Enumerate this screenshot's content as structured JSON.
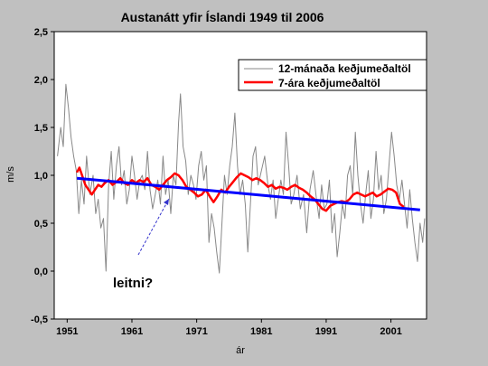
{
  "chart_data": {
    "type": "line",
    "title": "Austanátt yfir Íslandi 1949 til 2006",
    "xlabel": "ár",
    "ylabel": "m/s",
    "xlim": [
      1949,
      2006.5
    ],
    "ylim": [
      -0.5,
      2.5
    ],
    "x_ticks": [
      1951,
      1961,
      1971,
      1981,
      1991,
      2001
    ],
    "y_ticks": [
      -0.5,
      0.0,
      0.5,
      1.0,
      1.5,
      2.0,
      2.5
    ],
    "y_tick_labels": [
      "-0,5",
      "0,0",
      "0,5",
      "1,0",
      "1,5",
      "2,0",
      "2,5"
    ],
    "grid": false,
    "legend_position": "top-right",
    "series": [
      {
        "name": "12-mánaða keðjumeðaltöl",
        "color": "#888888",
        "points": [
          [
            1949.5,
            1.2
          ],
          [
            1950.0,
            1.5
          ],
          [
            1950.4,
            1.3
          ],
          [
            1950.8,
            1.95
          ],
          [
            1951.2,
            1.7
          ],
          [
            1951.6,
            1.4
          ],
          [
            1952.0,
            1.2
          ],
          [
            1952.4,
            1.05
          ],
          [
            1952.8,
            0.6
          ],
          [
            1953.2,
            0.95
          ],
          [
            1953.6,
            0.7
          ],
          [
            1954.0,
            1.2
          ],
          [
            1954.5,
            0.8
          ],
          [
            1955.0,
            1.0
          ],
          [
            1955.4,
            0.6
          ],
          [
            1955.8,
            0.75
          ],
          [
            1956.2,
            0.45
          ],
          [
            1956.6,
            0.55
          ],
          [
            1957.0,
            0.0
          ],
          [
            1957.4,
            0.9
          ],
          [
            1957.8,
            1.25
          ],
          [
            1958.2,
            0.75
          ],
          [
            1958.6,
            1.1
          ],
          [
            1959.0,
            1.3
          ],
          [
            1959.4,
            0.9
          ],
          [
            1959.8,
            1.05
          ],
          [
            1960.2,
            0.7
          ],
          [
            1960.6,
            0.85
          ],
          [
            1961.0,
            1.2
          ],
          [
            1961.4,
            1.0
          ],
          [
            1961.8,
            0.75
          ],
          [
            1962.2,
            0.95
          ],
          [
            1962.6,
            1.0
          ],
          [
            1963.0,
            0.85
          ],
          [
            1963.4,
            1.25
          ],
          [
            1963.8,
            0.85
          ],
          [
            1964.2,
            0.65
          ],
          [
            1964.6,
            0.8
          ],
          [
            1965.0,
            0.95
          ],
          [
            1965.4,
            0.7
          ],
          [
            1965.8,
            1.2
          ],
          [
            1966.2,
            0.8
          ],
          [
            1966.6,
            0.95
          ],
          [
            1967.0,
            0.6
          ],
          [
            1967.4,
            1.0
          ],
          [
            1967.8,
            0.9
          ],
          [
            1968.2,
            1.55
          ],
          [
            1968.5,
            1.85
          ],
          [
            1968.9,
            1.3
          ],
          [
            1969.3,
            1.15
          ],
          [
            1969.7,
            0.8
          ],
          [
            1970.1,
            1.0
          ],
          [
            1970.5,
            0.9
          ],
          [
            1970.9,
            0.75
          ],
          [
            1971.3,
            1.1
          ],
          [
            1971.7,
            1.25
          ],
          [
            1972.1,
            0.95
          ],
          [
            1972.5,
            1.1
          ],
          [
            1972.9,
            0.3
          ],
          [
            1973.3,
            0.6
          ],
          [
            1973.7,
            0.45
          ],
          [
            1974.1,
            0.2
          ],
          [
            1974.5,
            -0.02
          ],
          [
            1974.9,
            0.5
          ],
          [
            1975.3,
            1.0
          ],
          [
            1975.7,
            0.8
          ],
          [
            1976.1,
            1.1
          ],
          [
            1976.5,
            1.3
          ],
          [
            1976.9,
            1.65
          ],
          [
            1977.3,
            1.1
          ],
          [
            1977.7,
            0.8
          ],
          [
            1978.1,
            0.95
          ],
          [
            1978.5,
            0.7
          ],
          [
            1978.9,
            0.2
          ],
          [
            1979.3,
            0.7
          ],
          [
            1979.7,
            1.2
          ],
          [
            1980.1,
            1.3
          ],
          [
            1980.5,
            0.9
          ],
          [
            1981.0,
            1.05
          ],
          [
            1981.5,
            1.2
          ],
          [
            1982.0,
            0.9
          ],
          [
            1982.4,
            0.75
          ],
          [
            1982.8,
            0.95
          ],
          [
            1983.2,
            0.55
          ],
          [
            1983.6,
            0.75
          ],
          [
            1984.0,
            0.95
          ],
          [
            1984.4,
            0.8
          ],
          [
            1984.8,
            1.45
          ],
          [
            1985.2,
            1.1
          ],
          [
            1985.6,
            0.7
          ],
          [
            1986.0,
            0.8
          ],
          [
            1986.5,
            1.0
          ],
          [
            1987.0,
            0.65
          ],
          [
            1987.5,
            0.8
          ],
          [
            1988.0,
            0.4
          ],
          [
            1988.5,
            0.85
          ],
          [
            1989.0,
            1.05
          ],
          [
            1989.5,
            0.75
          ],
          [
            1989.9,
            0.55
          ],
          [
            1990.3,
            0.9
          ],
          [
            1990.7,
            0.65
          ],
          [
            1991.1,
            0.7
          ],
          [
            1991.5,
            0.95
          ],
          [
            1991.9,
            0.4
          ],
          [
            1992.3,
            0.6
          ],
          [
            1992.7,
            0.15
          ],
          [
            1993.1,
            0.4
          ],
          [
            1993.5,
            0.7
          ],
          [
            1993.9,
            0.55
          ],
          [
            1994.3,
            1.0
          ],
          [
            1994.7,
            1.1
          ],
          [
            1995.1,
            0.8
          ],
          [
            1995.5,
            1.45
          ],
          [
            1995.9,
            1.0
          ],
          [
            1996.3,
            0.7
          ],
          [
            1996.7,
            0.5
          ],
          [
            1997.1,
            0.8
          ],
          [
            1997.5,
            1.05
          ],
          [
            1997.9,
            0.55
          ],
          [
            1998.3,
            0.75
          ],
          [
            1998.7,
            1.25
          ],
          [
            1999.1,
            0.85
          ],
          [
            1999.5,
            1.0
          ],
          [
            1999.9,
            0.6
          ],
          [
            2000.3,
            0.75
          ],
          [
            2000.7,
            1.1
          ],
          [
            2001.1,
            1.45
          ],
          [
            2001.5,
            1.2
          ],
          [
            2001.9,
            0.9
          ],
          [
            2002.3,
            0.75
          ],
          [
            2002.7,
            0.95
          ],
          [
            2003.1,
            0.7
          ],
          [
            2003.5,
            0.45
          ],
          [
            2003.9,
            0.85
          ],
          [
            2004.3,
            0.55
          ],
          [
            2004.7,
            0.3
          ],
          [
            2005.1,
            0.1
          ],
          [
            2005.5,
            0.5
          ],
          [
            2005.9,
            0.3
          ],
          [
            2006.2,
            0.55
          ]
        ]
      },
      {
        "name": "7-ára keðjumeðaltöl",
        "color": "#ff0000",
        "points": [
          [
            1952.5,
            1.03
          ],
          [
            1952.9,
            1.08
          ],
          [
            1953.3,
            1.0
          ],
          [
            1953.8,
            0.9
          ],
          [
            1954.3,
            0.85
          ],
          [
            1954.8,
            0.8
          ],
          [
            1955.3,
            0.85
          ],
          [
            1955.8,
            0.9
          ],
          [
            1956.3,
            0.88
          ],
          [
            1956.8,
            0.92
          ],
          [
            1957.4,
            0.95
          ],
          [
            1958.0,
            0.9
          ],
          [
            1958.6,
            0.93
          ],
          [
            1959.2,
            0.97
          ],
          [
            1959.8,
            0.92
          ],
          [
            1960.4,
            0.9
          ],
          [
            1961.0,
            0.95
          ],
          [
            1961.6,
            0.92
          ],
          [
            1962.2,
            0.95
          ],
          [
            1962.8,
            0.93
          ],
          [
            1963.4,
            0.97
          ],
          [
            1964.0,
            0.9
          ],
          [
            1964.6,
            0.88
          ],
          [
            1965.2,
            0.85
          ],
          [
            1965.8,
            0.9
          ],
          [
            1966.4,
            0.95
          ],
          [
            1967.0,
            0.98
          ],
          [
            1967.6,
            1.02
          ],
          [
            1968.2,
            1.0
          ],
          [
            1968.8,
            0.95
          ],
          [
            1969.4,
            0.88
          ],
          [
            1970.0,
            0.85
          ],
          [
            1970.6,
            0.82
          ],
          [
            1971.2,
            0.78
          ],
          [
            1971.8,
            0.8
          ],
          [
            1972.4,
            0.85
          ],
          [
            1973.0,
            0.78
          ],
          [
            1973.6,
            0.72
          ],
          [
            1974.2,
            0.78
          ],
          [
            1974.8,
            0.85
          ],
          [
            1975.4,
            0.82
          ],
          [
            1976.0,
            0.88
          ],
          [
            1976.6,
            0.93
          ],
          [
            1977.2,
            0.98
          ],
          [
            1977.8,
            1.02
          ],
          [
            1978.4,
            1.0
          ],
          [
            1979.0,
            0.98
          ],
          [
            1979.6,
            0.95
          ],
          [
            1980.2,
            0.97
          ],
          [
            1980.8,
            0.95
          ],
          [
            1981.4,
            0.92
          ],
          [
            1982.0,
            0.88
          ],
          [
            1982.6,
            0.9
          ],
          [
            1983.2,
            0.86
          ],
          [
            1983.8,
            0.88
          ],
          [
            1984.4,
            0.87
          ],
          [
            1985.0,
            0.85
          ],
          [
            1985.6,
            0.88
          ],
          [
            1986.2,
            0.9
          ],
          [
            1986.8,
            0.87
          ],
          [
            1987.4,
            0.85
          ],
          [
            1988.0,
            0.82
          ],
          [
            1988.6,
            0.78
          ],
          [
            1989.2,
            0.75
          ],
          [
            1989.8,
            0.7
          ],
          [
            1990.4,
            0.65
          ],
          [
            1991.0,
            0.63
          ],
          [
            1991.6,
            0.68
          ],
          [
            1992.2,
            0.7
          ],
          [
            1992.8,
            0.72
          ],
          [
            1993.4,
            0.73
          ],
          [
            1994.0,
            0.72
          ],
          [
            1994.6,
            0.75
          ],
          [
            1995.2,
            0.8
          ],
          [
            1995.8,
            0.82
          ],
          [
            1996.4,
            0.8
          ],
          [
            1997.0,
            0.78
          ],
          [
            1997.6,
            0.8
          ],
          [
            1998.2,
            0.82
          ],
          [
            1998.8,
            0.78
          ],
          [
            1999.4,
            0.8
          ],
          [
            2000.0,
            0.83
          ],
          [
            2000.6,
            0.86
          ],
          [
            2001.2,
            0.85
          ],
          [
            2001.8,
            0.82
          ],
          [
            2002.4,
            0.7
          ],
          [
            2003.0,
            0.67
          ]
        ]
      },
      {
        "name": "trend",
        "color": "#0000ff",
        "points": [
          [
            1952.5,
            0.97
          ],
          [
            2005.5,
            0.64
          ]
        ]
      }
    ],
    "annotations": [
      {
        "text": "leitni?",
        "x": 1960.5,
        "y": -0.07
      }
    ]
  }
}
